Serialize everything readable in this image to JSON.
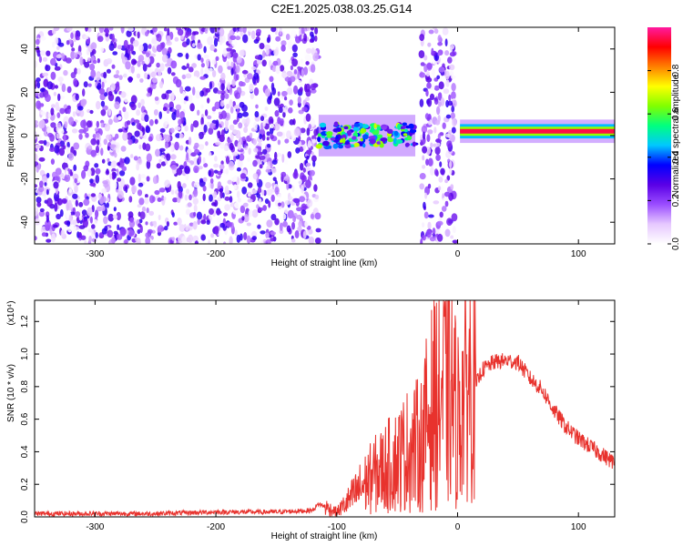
{
  "title": "C2E1.2025.038.03.25.G14",
  "colorbar": {
    "label": "Normalized spectral amplitude",
    "ticks": [
      "0.0",
      "0.2",
      "0.4",
      "0.6",
      "0.8"
    ],
    "tick_values": [
      0.0,
      0.2,
      0.4,
      0.6,
      0.8
    ],
    "range": [
      0,
      1
    ],
    "colormap": [
      "#ffffff",
      "#e6c8ff",
      "#9b4dff",
      "#5a00e6",
      "#0000ff",
      "#00c8ff",
      "#00ff80",
      "#80ff00",
      "#ffff00",
      "#ff8000",
      "#ff0000",
      "#ff1aa0"
    ]
  },
  "chart_data": [
    {
      "type": "heatmap",
      "title": "C2E1.2025.038.03.25.G14",
      "xlabel": "Height of straight line (km)",
      "ylabel": "Frequency (Hz)",
      "xlim": [
        -350,
        130
      ],
      "ylim": [
        -50,
        50
      ],
      "xticks": [
        -300,
        -200,
        -100,
        0,
        100
      ],
      "yticks": [
        -40,
        -20,
        0,
        20,
        40
      ],
      "regions": [
        {
          "name": "noise",
          "x": [
            -350,
            -115
          ],
          "y": [
            -50,
            50
          ],
          "amplitude": 0.3
        },
        {
          "name": "band",
          "x": [
            -115,
            -35
          ],
          "y_center": 0,
          "halfwidth": 6,
          "amplitude": 0.5
        },
        {
          "name": "noise",
          "x": [
            -30,
            -2
          ],
          "y": [
            -50,
            50
          ],
          "amplitude": 0.3
        },
        {
          "name": "carrier",
          "x": [
            2,
            130
          ],
          "y_center": 2,
          "halfwidth": 3,
          "amplitude": 0.95
        }
      ]
    },
    {
      "type": "line",
      "xlabel": "Height of straight line (km)",
      "ylabel": "SNR (10 * v/v)",
      "yunit": "(x10⁴)",
      "xlim": [
        -350,
        130
      ],
      "ylim": [
        0,
        1.33
      ],
      "xticks": [
        -300,
        -200,
        -100,
        0,
        100
      ],
      "yticks": [
        0.0,
        0.2,
        0.4,
        0.6,
        0.8,
        1.0,
        1.2
      ],
      "color": "#e8322d",
      "x": [
        -350,
        -300,
        -250,
        -200,
        -150,
        -120,
        -115,
        -100,
        -90,
        -80,
        -70,
        -60,
        -50,
        -40,
        -30,
        -25,
        -20,
        -15,
        -10,
        -5,
        0,
        5,
        10,
        15,
        20,
        30,
        40,
        50,
        60,
        70,
        80,
        90,
        100,
        110,
        120,
        130
      ],
      "y": [
        0.02,
        0.02,
        0.02,
        0.03,
        0.03,
        0.04,
        0.08,
        0.03,
        0.1,
        0.18,
        0.25,
        0.3,
        0.35,
        0.42,
        0.45,
        0.6,
        0.7,
        0.75,
        0.8,
        0.75,
        0.6,
        0.75,
        0.85,
        0.8,
        0.9,
        0.95,
        0.96,
        0.95,
        0.85,
        0.78,
        0.65,
        0.55,
        0.48,
        0.43,
        0.38,
        0.33
      ]
    }
  ]
}
